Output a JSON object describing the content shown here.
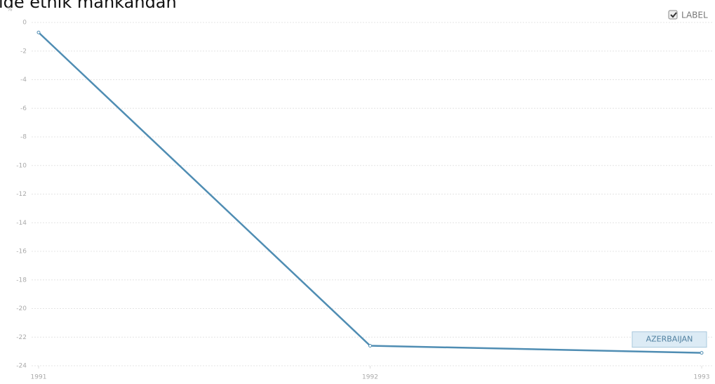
{
  "chart_data": {
    "type": "line",
    "title": "ıde etnik mahkandan",
    "y_label": "%",
    "label_toggle": "LABEL",
    "x": [
      1991,
      1992,
      1993
    ],
    "xlim": [
      1991,
      1993
    ],
    "xticks": [
      1991,
      1992,
      1993
    ],
    "ylim": [
      -24,
      0
    ],
    "yticks": [
      0,
      -2,
      -4,
      -6,
      -8,
      -10,
      -12,
      -14,
      -16,
      -18,
      -20,
      -22,
      -24
    ],
    "grid": true,
    "series": [
      {
        "name": "AZERBAIJAN",
        "color": "#4f8db3",
        "values": [
          -0.7,
          -22.6,
          -23.1
        ]
      }
    ]
  }
}
